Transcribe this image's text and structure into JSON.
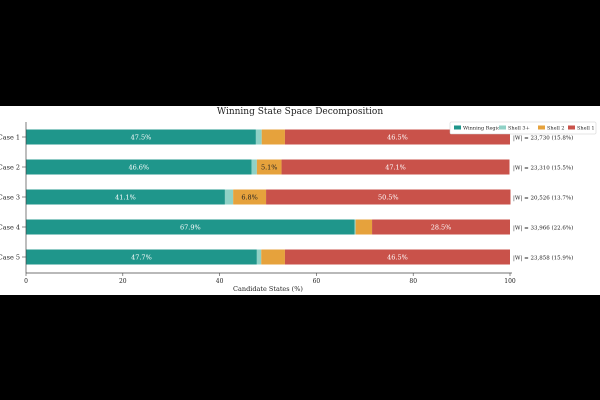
{
  "chart_data": {
    "type": "bar",
    "orientation": "horizontal",
    "stacked": true,
    "title": "Winning State Space Decomposition",
    "xlabel": "Candidate States (%)",
    "ylabel": "",
    "xlim": [
      0,
      100
    ],
    "xticks": [
      0,
      20,
      40,
      60,
      80,
      100
    ],
    "categories": [
      "Case 1",
      "Case 2",
      "Case 3",
      "Case 4",
      "Case 5"
    ],
    "legend_position": "top-right",
    "grid": false,
    "series": [
      {
        "name": "Winning Region",
        "color": "#1f968b",
        "values": [
          47.5,
          46.6,
          41.1,
          67.9,
          47.7
        ],
        "labels": [
          "47.5%",
          "46.6%",
          "41.1%",
          "67.9%",
          "47.7%"
        ]
      },
      {
        "name": "Shell 3+",
        "color": "#8fd1c6",
        "values": [
          1.2,
          1.1,
          1.7,
          0.2,
          0.9
        ],
        "labels": [
          "",
          "",
          "",
          "",
          ""
        ]
      },
      {
        "name": "Shell 2",
        "color": "#e6a23c",
        "values": [
          4.8,
          5.1,
          6.8,
          3.4,
          4.9
        ],
        "labels": [
          "",
          "5.1%",
          "6.8%",
          "",
          ""
        ]
      },
      {
        "name": "Shell 1",
        "color": "#c9524a",
        "values": [
          46.5,
          47.1,
          50.5,
          28.5,
          46.5
        ],
        "labels": [
          "46.5%",
          "47.1%",
          "50.5%",
          "28.5%",
          "46.5%"
        ]
      }
    ],
    "annotations": [
      "|W| = 23,730  (15.8%)",
      "|W| = 23,310  (15.5%)",
      "|W| = 20,526  (13.7%)",
      "|W| = 33,966  (22.6%)",
      "|W| = 23,858  (15.9%)"
    ]
  }
}
